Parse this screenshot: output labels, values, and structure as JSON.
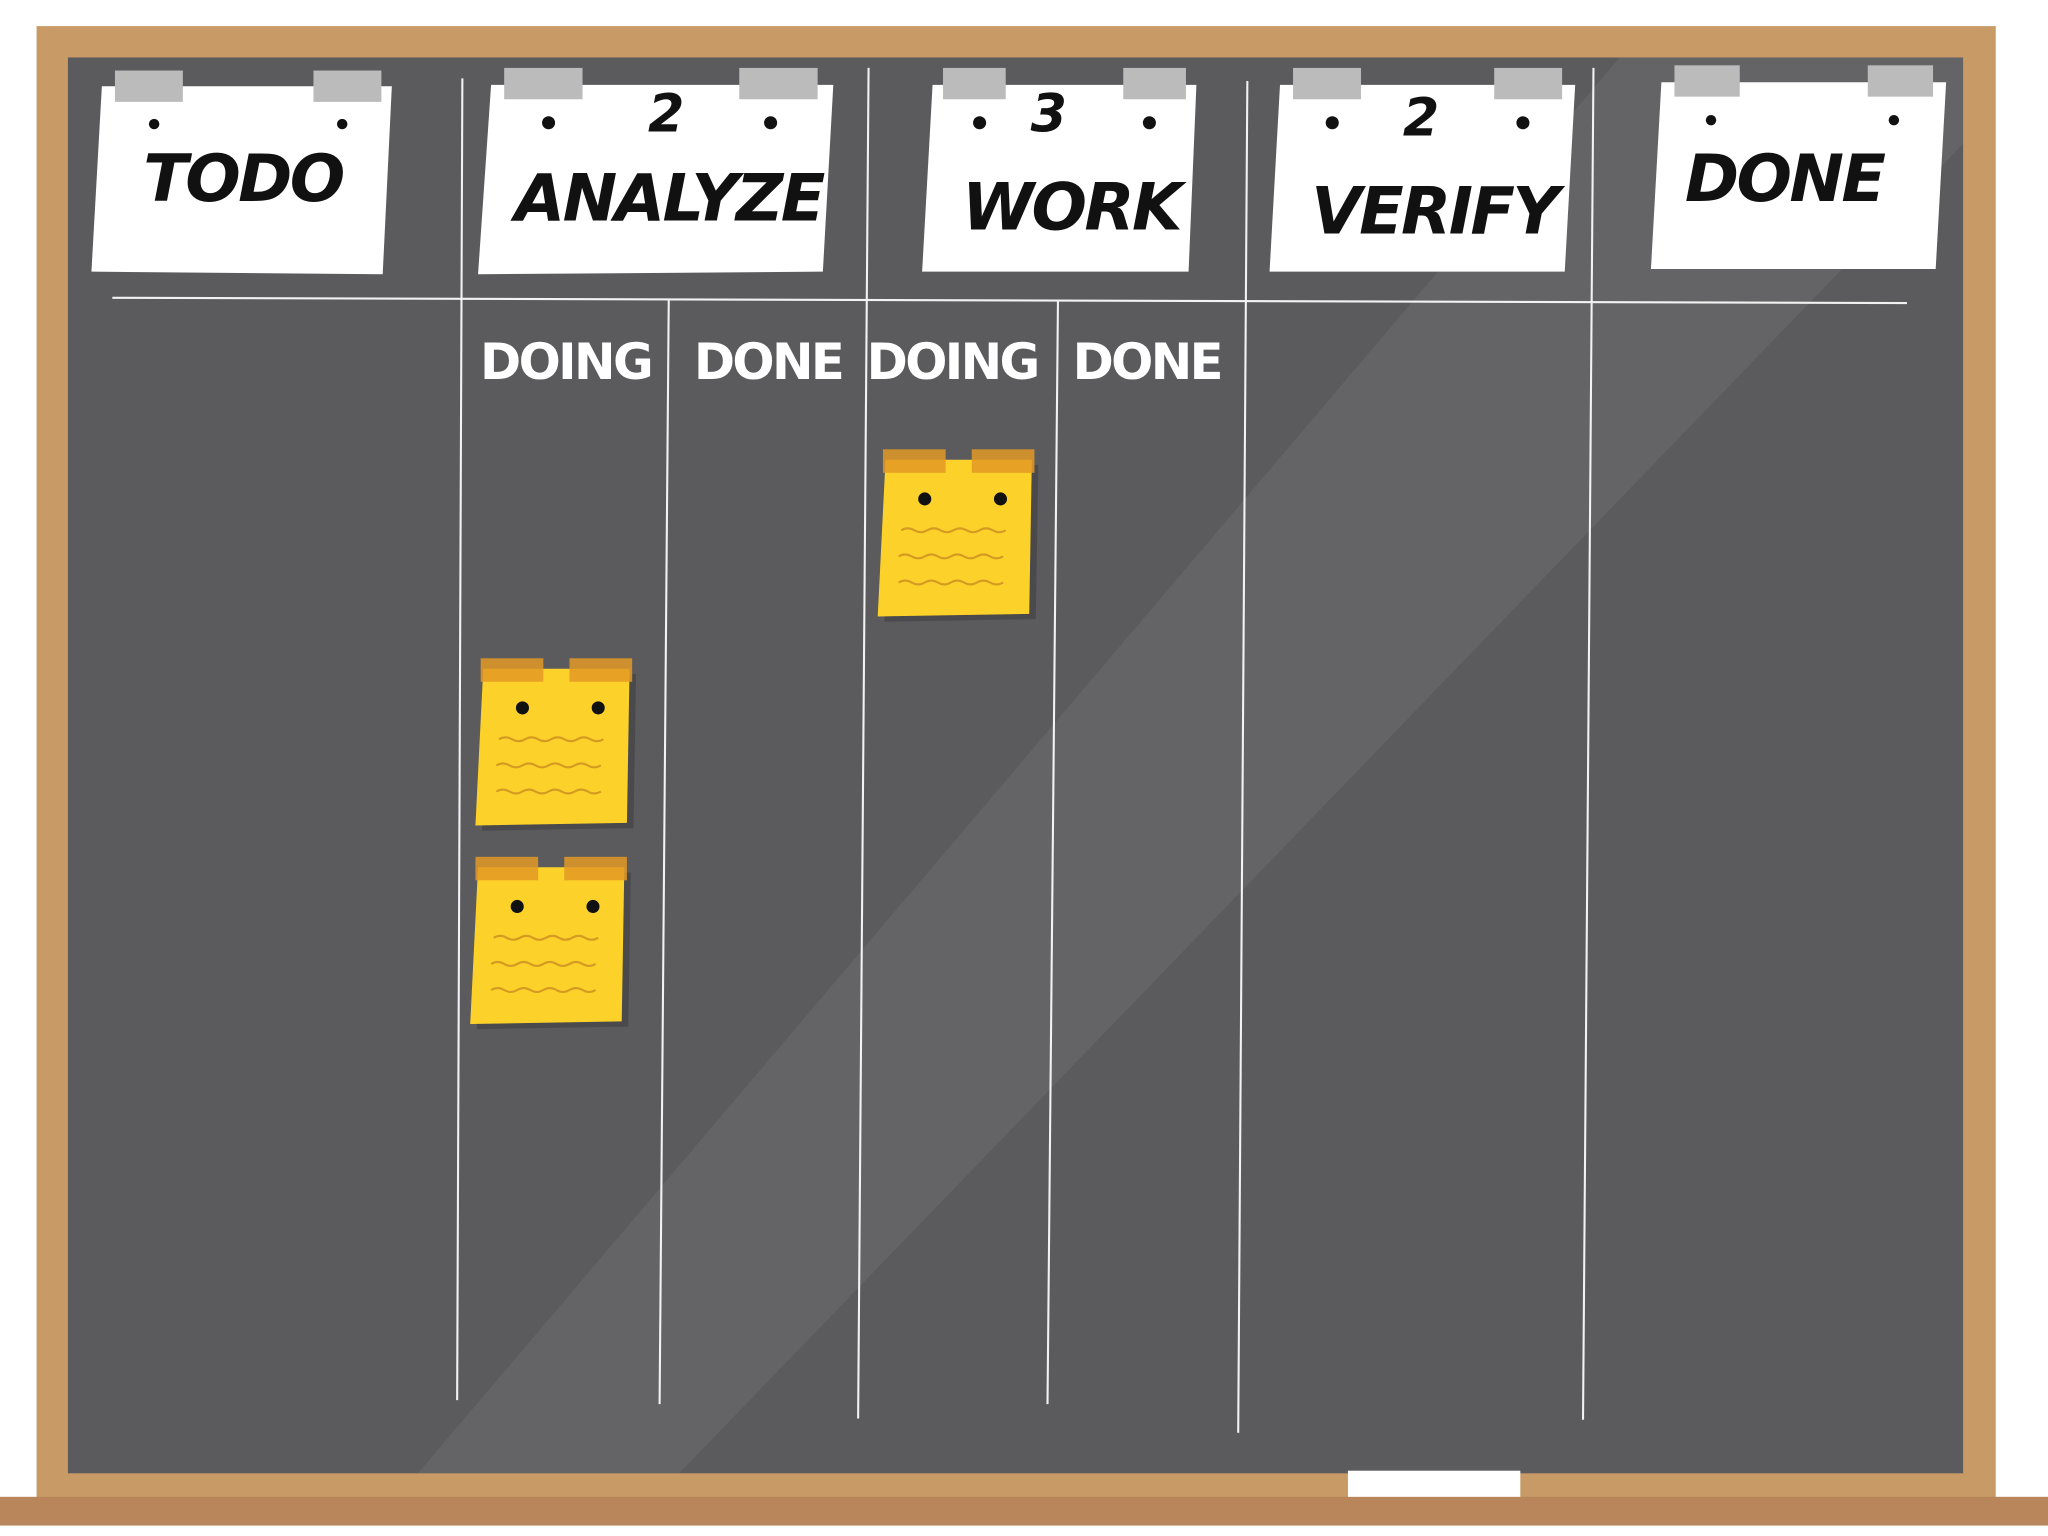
{
  "columns": [
    {
      "title": "TODO"
    },
    {
      "title": "ANALYZE",
      "wip_limit": 2,
      "subcolumns": [
        "DOING",
        "DONE"
      ]
    },
    {
      "title": "WORK",
      "wip_limit": 3,
      "subcolumns": [
        "DOING",
        "DONE"
      ]
    },
    {
      "title": "VERIFY",
      "wip_limit": 2
    },
    {
      "title": "DONE"
    }
  ]
}
